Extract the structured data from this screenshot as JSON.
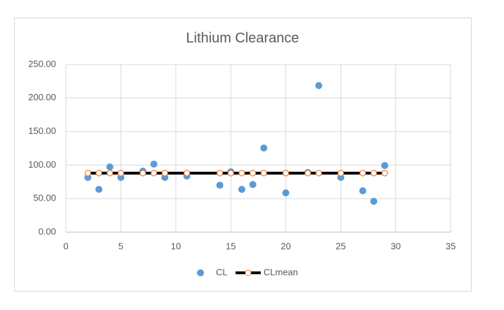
{
  "chart_data": {
    "type": "scatter",
    "title": "Lithium Clearance",
    "xlim": [
      0,
      35
    ],
    "xticks": [
      0,
      5,
      10,
      15,
      20,
      25,
      30,
      35
    ],
    "ylim": [
      0,
      250
    ],
    "yticks": [
      {
        "value": 0,
        "label": "0.00"
      },
      {
        "value": 50,
        "label": "50.00"
      },
      {
        "value": 100,
        "label": "100.00"
      },
      {
        "value": 150,
        "label": "150.00"
      },
      {
        "value": 200,
        "label": "200.00"
      },
      {
        "value": 250,
        "label": "250.00"
      }
    ],
    "grid": true,
    "series": [
      {
        "name": "CL",
        "kind": "markers",
        "color": "#5b9bd5",
        "x": [
          2,
          3,
          4,
          5,
          7,
          8,
          9,
          11,
          14,
          15,
          16,
          17,
          18,
          20,
          22,
          23,
          25,
          27,
          28,
          29
        ],
        "values": [
          81.6,
          63.8,
          97.3,
          81.6,
          91,
          101.5,
          81.6,
          83.7,
          70,
          90,
          63.8,
          71,
          125.5,
          58.6,
          89,
          218.6,
          81.6,
          61.7,
          46,
          99.4
        ]
      },
      {
        "name": "CLmean",
        "kind": "line-markers",
        "color": "#000000",
        "marker_color": "#ed7d31",
        "x": [
          2,
          3,
          4,
          5,
          7,
          8,
          9,
          11,
          14,
          15,
          16,
          17,
          18,
          20,
          22,
          23,
          25,
          27,
          28,
          29
        ],
        "values": [
          88,
          88,
          88,
          88,
          88,
          88,
          88,
          88,
          88,
          88,
          88,
          88,
          88,
          88,
          88,
          88,
          88,
          88,
          88,
          88
        ]
      }
    ]
  }
}
